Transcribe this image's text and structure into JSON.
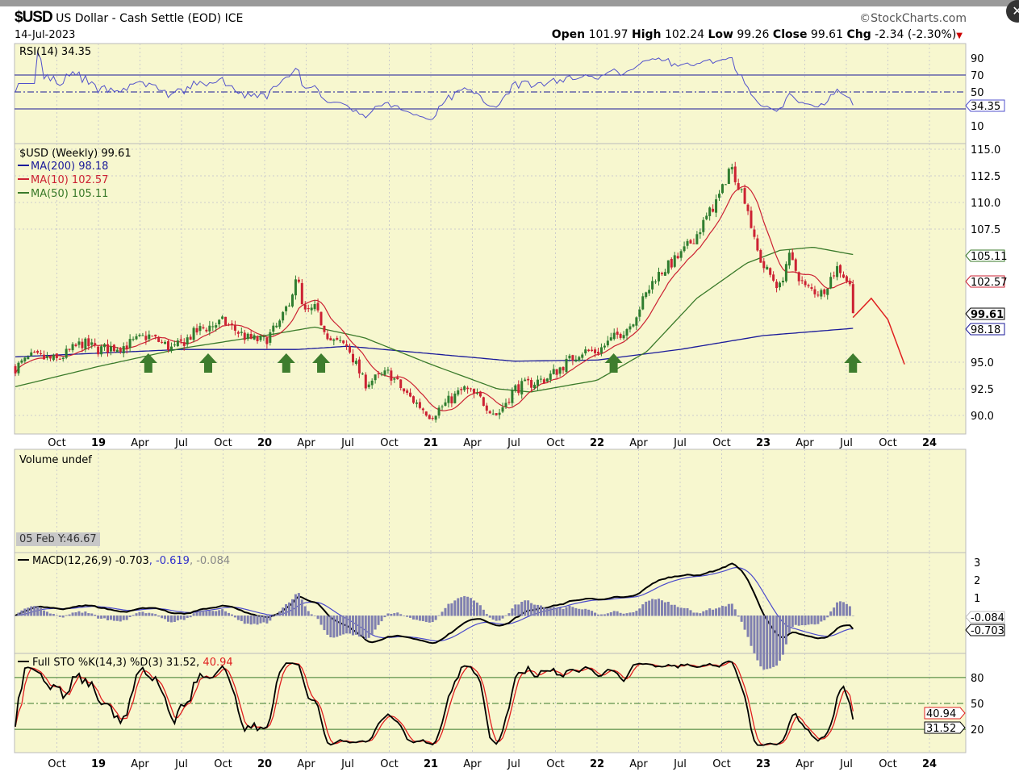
{
  "header": {
    "symbol": "$USD",
    "name": "US Dollar - Cash Settle (EOD)",
    "exchange": "ICE",
    "brand": "©StockCharts.com",
    "date": "14-Jul-2023",
    "open_label": "Open",
    "open": "101.97",
    "high_label": "High",
    "high": "102.24",
    "low_label": "Low",
    "low": "99.26",
    "close_label": "Close",
    "close": "99.61",
    "chg_label": "Chg",
    "chg": "-2.34 (-2.30%)"
  },
  "cursor_readout": "05 Feb Y:46.67",
  "colors": {
    "bg": "#f7f7cf",
    "up": "#2f7d2f",
    "down": "#cc2233",
    "ma200": "#1a1a9a",
    "ma10": "#cc2233",
    "ma50": "#3a7a2a",
    "rsi": "#5050cc",
    "arrow": "#3e7d2e"
  },
  "chart_data": [
    {
      "type": "candlestick",
      "title": "$USD (Weekly) 99.61",
      "ylim": [
        89,
        116
      ],
      "yticks": [
        "115.0",
        "112.5",
        "110.0",
        "107.5",
        "95.0",
        "92.5",
        "90.0"
      ],
      "ytick_values": [
        115,
        112.5,
        110,
        107.5,
        95,
        92.5,
        90
      ],
      "price_keypoints": [
        [
          2018.5,
          94.5
        ],
        [
          2018.6,
          95.5
        ],
        [
          2018.75,
          95.2
        ],
        [
          2018.9,
          96.8
        ],
        [
          2019.0,
          96.2
        ],
        [
          2019.15,
          96.5
        ],
        [
          2019.3,
          97.5
        ],
        [
          2019.45,
          96.2
        ],
        [
          2019.6,
          98
        ],
        [
          2019.75,
          98.8
        ],
        [
          2019.9,
          97.2
        ],
        [
          2020.0,
          97
        ],
        [
          2020.1,
          98.8
        ],
        [
          2020.2,
          103
        ],
        [
          2020.23,
          99.5
        ],
        [
          2020.3,
          100
        ],
        [
          2020.4,
          97
        ],
        [
          2020.5,
          96.5
        ],
        [
          2020.6,
          93
        ],
        [
          2020.75,
          94
        ],
        [
          2020.85,
          92
        ],
        [
          2021.0,
          90
        ],
        [
          2021.2,
          92.5
        ],
        [
          2021.3,
          91.5
        ],
        [
          2021.4,
          90
        ],
        [
          2021.5,
          92.5
        ],
        [
          2021.7,
          93.5
        ],
        [
          2021.9,
          96
        ],
        [
          2022.0,
          96
        ],
        [
          2022.2,
          98.5
        ],
        [
          2022.35,
          103
        ],
        [
          2022.5,
          105
        ],
        [
          2022.6,
          107
        ],
        [
          2022.75,
          111
        ],
        [
          2022.8,
          113.5
        ],
        [
          2022.9,
          110
        ],
        [
          2022.95,
          106
        ],
        [
          2023.0,
          104
        ],
        [
          2023.1,
          102
        ],
        [
          2023.15,
          105
        ],
        [
          2023.25,
          102
        ],
        [
          2023.35,
          101.5
        ],
        [
          2023.45,
          104
        ],
        [
          2023.52,
          102.3
        ],
        [
          2023.54,
          99.61
        ]
      ],
      "legend": [
        {
          "label": "MA(200) 98.18",
          "value": 98.18
        },
        {
          "label": "MA(10) 102.57",
          "value": 102.57
        },
        {
          "label": "MA(50) 105.11",
          "value": 105.11
        }
      ],
      "ma200_keypoints": [
        [
          2018.5,
          95.5
        ],
        [
          2019.5,
          96.2
        ],
        [
          2020.2,
          96.2
        ],
        [
          2020.5,
          96.5
        ],
        [
          2021.0,
          95.8
        ],
        [
          2021.5,
          95.1
        ],
        [
          2022.0,
          95.2
        ],
        [
          2022.5,
          96.2
        ],
        [
          2023.0,
          97.5
        ],
        [
          2023.54,
          98.18
        ]
      ],
      "ma50_keypoints": [
        [
          2018.5,
          92.7
        ],
        [
          2019.0,
          94.6
        ],
        [
          2019.5,
          96.3
        ],
        [
          2020.0,
          97.5
        ],
        [
          2020.3,
          98.3
        ],
        [
          2020.6,
          97.3
        ],
        [
          2021.0,
          94.8
        ],
        [
          2021.4,
          92.5
        ],
        [
          2021.6,
          92.2
        ],
        [
          2022.0,
          93.3
        ],
        [
          2022.3,
          96
        ],
        [
          2022.6,
          101
        ],
        [
          2022.9,
          104.3
        ],
        [
          2023.1,
          105.5
        ],
        [
          2023.3,
          105.8
        ],
        [
          2023.54,
          105.11
        ]
      ],
      "last_labels": [
        "105.11",
        "102.57",
        "99.61",
        "98.18"
      ],
      "support_arrows_dates": [
        2019.3,
        2019.66,
        2020.13,
        2020.34,
        2022.1,
        2023.54
      ],
      "projection_keypoints": [
        [
          2023.54,
          99.2
        ],
        [
          2023.65,
          101
        ],
        [
          2023.75,
          99
        ],
        [
          2023.85,
          94.8
        ]
      ]
    },
    {
      "type": "line",
      "title": "RSI(14) 34.35",
      "yticks": [
        "90",
        "70",
        "50",
        "10"
      ],
      "ytick_values": [
        90,
        70,
        50,
        10
      ],
      "last": "34.35",
      "ylim": [
        0,
        100
      ]
    },
    {
      "type": "bar",
      "title": "Volume undef"
    },
    {
      "type": "line",
      "title": "MACD(12,26,9)",
      "macd": "-0.703",
      "signal": "-0.619",
      "hist": "-0.084",
      "yticks": [
        "3",
        "2",
        "1"
      ],
      "ytick_values": [
        3,
        2,
        1
      ],
      "last_labels": [
        "-0.084",
        "-0.703"
      ]
    },
    {
      "type": "line",
      "title": "Full STO %K(14,3) %D(3)",
      "k": "31.52",
      "d": "40.94",
      "yticks": [
        "80",
        "50",
        "20"
      ],
      "ytick_values": [
        80,
        50,
        20
      ],
      "last_labels": [
        "40.94",
        "31.52"
      ]
    }
  ],
  "xaxis": {
    "labels": [
      "Oct",
      "19",
      "Apr",
      "Jul",
      "Oct",
      "20",
      "Apr",
      "Jul",
      "Oct",
      "21",
      "Apr",
      "Jul",
      "Oct",
      "22",
      "Apr",
      "Jul",
      "Oct",
      "23",
      "Apr",
      "Jul",
      "Oct",
      "24"
    ],
    "dates": [
      2018.75,
      2019,
      2019.25,
      2019.5,
      2019.75,
      2020,
      2020.25,
      2020.5,
      2020.75,
      2021,
      2021.25,
      2021.5,
      2021.75,
      2022,
      2022.25,
      2022.5,
      2022.75,
      2023,
      2023.25,
      2023.5,
      2023.75,
      2024
    ]
  }
}
